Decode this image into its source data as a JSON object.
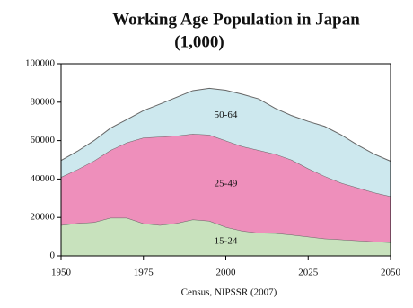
{
  "chart_data": {
    "type": "stacked_area",
    "title": "Working Age Population in Japan",
    "subtitle": "(1,000)",
    "x_label": "Census, NIPSSR (2007)",
    "x": [
      1950,
      1955,
      1960,
      1965,
      1970,
      1975,
      1980,
      1985,
      1990,
      1995,
      2000,
      2005,
      2010,
      2015,
      2020,
      2025,
      2030,
      2035,
      2040,
      2045,
      2050
    ],
    "series": [
      {
        "name": "15-24",
        "color": "#c8e2bd",
        "values": [
          16000,
          17000,
          17500,
          19800,
          19800,
          16900,
          16000,
          17000,
          18900,
          18200,
          15000,
          13000,
          12000,
          11800,
          11000,
          10000,
          9000,
          8500,
          8000,
          7500,
          7000
        ]
      },
      {
        "name": "25-49",
        "color": "#ee8fbb",
        "values": [
          25000,
          28000,
          32000,
          35200,
          39200,
          44600,
          46000,
          45500,
          44600,
          44800,
          45000,
          44000,
          43000,
          41200,
          39000,
          35500,
          32500,
          29500,
          27500,
          25500,
          24000
        ]
      },
      {
        "name": "50-64",
        "color": "#cde8ee",
        "values": [
          8700,
          9500,
          10500,
          11500,
          12000,
          14100,
          17000,
          20000,
          22500,
          24200,
          26200,
          27100,
          26700,
          23800,
          23000,
          24500,
          25900,
          25000,
          22200,
          20000,
          18300
        ]
      }
    ],
    "xlim": [
      1950,
      2050
    ],
    "xticks": [
      1950,
      1975,
      2000,
      2025,
      2050
    ],
    "ylim": [
      0,
      100000
    ],
    "yticks": [
      0,
      20000,
      40000,
      60000,
      80000,
      100000
    ],
    "grid": false
  }
}
